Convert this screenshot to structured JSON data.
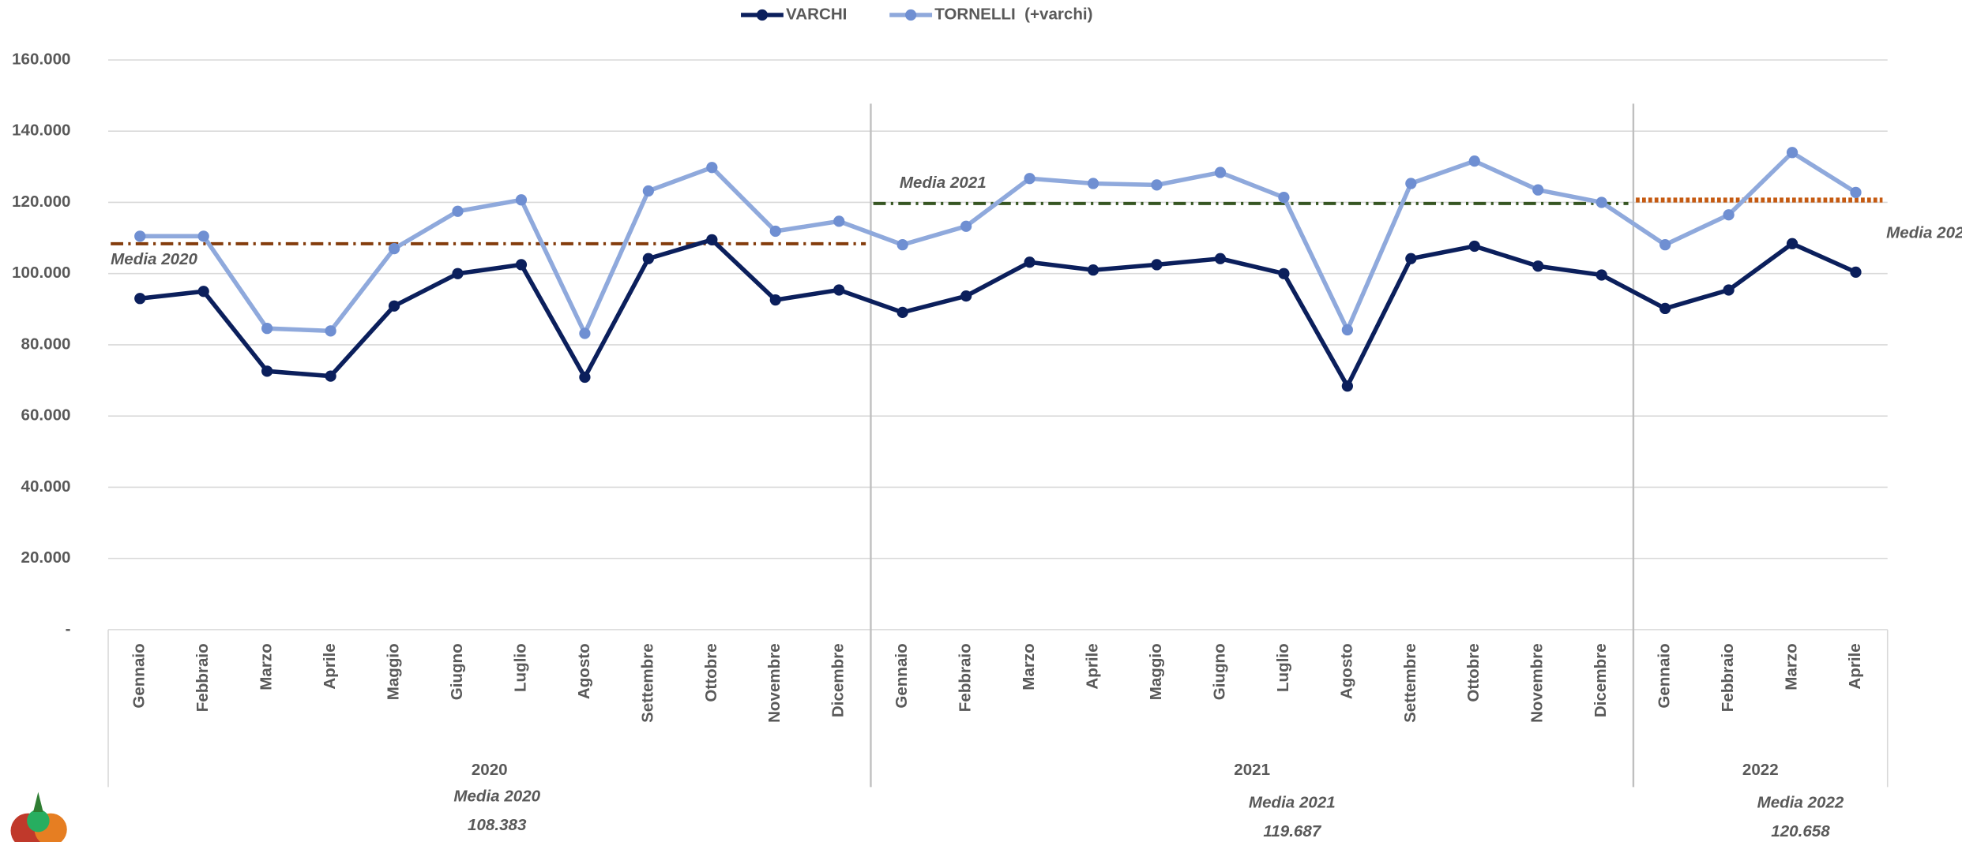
{
  "chart_data": {
    "type": "line",
    "categories": [
      "Gennaio",
      "Febbraio",
      "Marzo",
      "Aprile",
      "Maggio",
      "Giugno",
      "Luglio",
      "Agosto",
      "Settembre",
      "Ottobre",
      "Novembre",
      "Dicembre",
      "Gennaio",
      "Febbraio",
      "Marzo",
      "Aprile",
      "Maggio",
      "Giugno",
      "Luglio",
      "Agosto",
      "Settembre",
      "Ottobre",
      "Novembre",
      "Dicembre",
      "Gennaio",
      "Febbraio",
      "Marzo",
      "Aprile"
    ],
    "groups": [
      "2020",
      "2021",
      "2022"
    ],
    "series": [
      {
        "name": "VARCHI",
        "color": "#0b1f5c",
        "values": [
          93000,
          95000,
          72600,
          71200,
          90900,
          100000,
          102500,
          70900,
          104200,
          109500,
          92600,
          95400,
          89100,
          93700,
          103200,
          101000,
          102500,
          104200,
          100000,
          68400,
          104200,
          107700,
          102100,
          99600,
          90200,
          95400,
          108400,
          100400
        ]
      },
      {
        "name": "TORNELLI  (+varchi)",
        "color": "#8fa9dc",
        "values": [
          110500,
          110500,
          84600,
          83900,
          107000,
          117500,
          120700,
          83200,
          123200,
          129800,
          111900,
          114700,
          108100,
          113300,
          126700,
          125300,
          124900,
          128400,
          121400,
          84200,
          125300,
          131600,
          123500,
          120000,
          108100,
          116500,
          134000,
          122800
        ]
      }
    ],
    "averages": [
      {
        "name": "Media 2020",
        "value": 108383,
        "value_label": "108.383",
        "color": "#843c0c",
        "label_color": "#7b1010",
        "style": "dashdot"
      },
      {
        "name": "Media 2021",
        "value": 119687,
        "value_label": "119.687",
        "color": "#375623",
        "label_color": "#375623",
        "style": "dashdot"
      },
      {
        "name": "Media 2022",
        "value": 120658,
        "value_label": "120.658",
        "color": "#c55a11",
        "label_color": "#c55a11",
        "style": "dotted"
      }
    ],
    "ylim": [
      0,
      160000
    ],
    "yticks": [
      {
        "value": 0,
        "label": "-"
      },
      {
        "value": 20000,
        "label": "20.000"
      },
      {
        "value": 40000,
        "label": "40.000"
      },
      {
        "value": 60000,
        "label": "60.000"
      },
      {
        "value": 80000,
        "label": "80.000"
      },
      {
        "value": 100000,
        "label": "100.000"
      },
      {
        "value": 120000,
        "label": "120.000"
      },
      {
        "value": 140000,
        "label": "140.000"
      },
      {
        "value": 160000,
        "label": "160.000"
      }
    ],
    "grid": true
  }
}
